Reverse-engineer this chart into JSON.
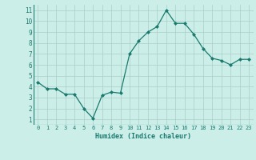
{
  "x": [
    0,
    1,
    2,
    3,
    4,
    5,
    6,
    7,
    8,
    9,
    10,
    11,
    12,
    13,
    14,
    15,
    16,
    17,
    18,
    19,
    20,
    21,
    22,
    23
  ],
  "y": [
    4.4,
    3.8,
    3.8,
    3.3,
    3.3,
    2.0,
    1.1,
    3.2,
    3.5,
    3.4,
    7.0,
    8.2,
    9.0,
    9.5,
    11.0,
    9.8,
    9.8,
    8.8,
    7.5,
    6.6,
    6.4,
    6.0,
    6.5,
    6.5
  ],
  "xlim": [
    -0.5,
    23.5
  ],
  "ylim": [
    0.5,
    11.5
  ],
  "yticks": [
    1,
    2,
    3,
    4,
    5,
    6,
    7,
    8,
    9,
    10,
    11
  ],
  "xticks": [
    0,
    1,
    2,
    3,
    4,
    5,
    6,
    7,
    8,
    9,
    10,
    11,
    12,
    13,
    14,
    15,
    16,
    17,
    18,
    19,
    20,
    21,
    22,
    23
  ],
  "xlabel": "Humidex (Indice chaleur)",
  "line_color": "#1a7a6e",
  "marker": "D",
  "marker_size": 2.0,
  "bg_color": "#cceee8",
  "grid_color": "#aacdc8"
}
